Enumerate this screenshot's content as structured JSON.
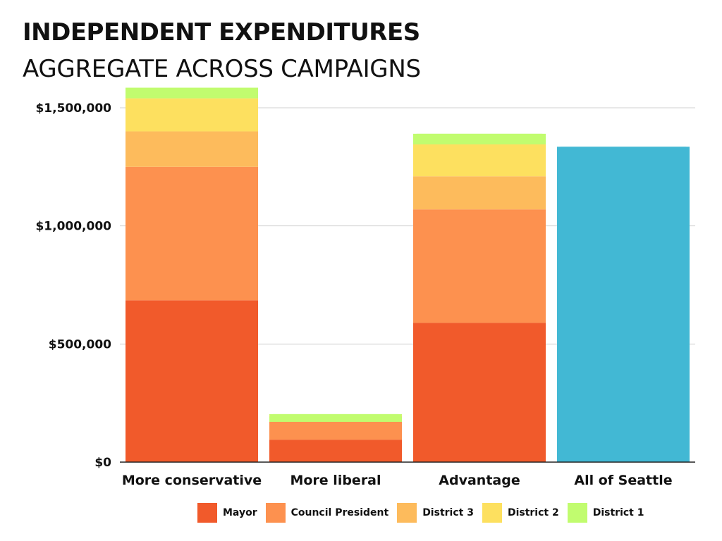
{
  "chart_data": {
    "type": "bar",
    "stacked": true,
    "title": "INDEPENDENT EXPENDITURES",
    "subtitle": "AGGREGATE ACROSS CAMPAIGNS",
    "xlabel": "",
    "ylabel": "",
    "ylim": [
      0,
      1500000
    ],
    "yticks": [
      0,
      500000,
      1000000,
      1500000
    ],
    "ytick_labels": [
      "$0",
      "$500,000",
      "$1,000,000",
      "$1,500,000"
    ],
    "grid": true,
    "legend_position": "bottom",
    "categories": [
      "More conservative",
      "More liberal",
      "Advantage",
      "All of Seattle"
    ],
    "series": [
      {
        "name": "Mayor",
        "color": "#f15a2b",
        "values": [
          685000,
          95000,
          590000,
          0
        ]
      },
      {
        "name": "Council President",
        "color": "#fd914f",
        "values": [
          565000,
          90000,
          480000,
          0
        ]
      },
      {
        "name": "District 3",
        "color": "#fdbb5c",
        "values": [
          150000,
          8000,
          140000,
          0
        ]
      },
      {
        "name": "District 2",
        "color": "#fde05f",
        "values": [
          140000,
          5000,
          135000,
          0
        ]
      },
      {
        "name": "District 1",
        "color": "#c1fc6f",
        "values": [
          45000,
          5000,
          45000,
          0
        ]
      },
      {
        "name": "All of Seattle",
        "color": "#42b8d4",
        "values": [
          0,
          0,
          0,
          1335000
        ],
        "in_legend": false
      }
    ]
  }
}
